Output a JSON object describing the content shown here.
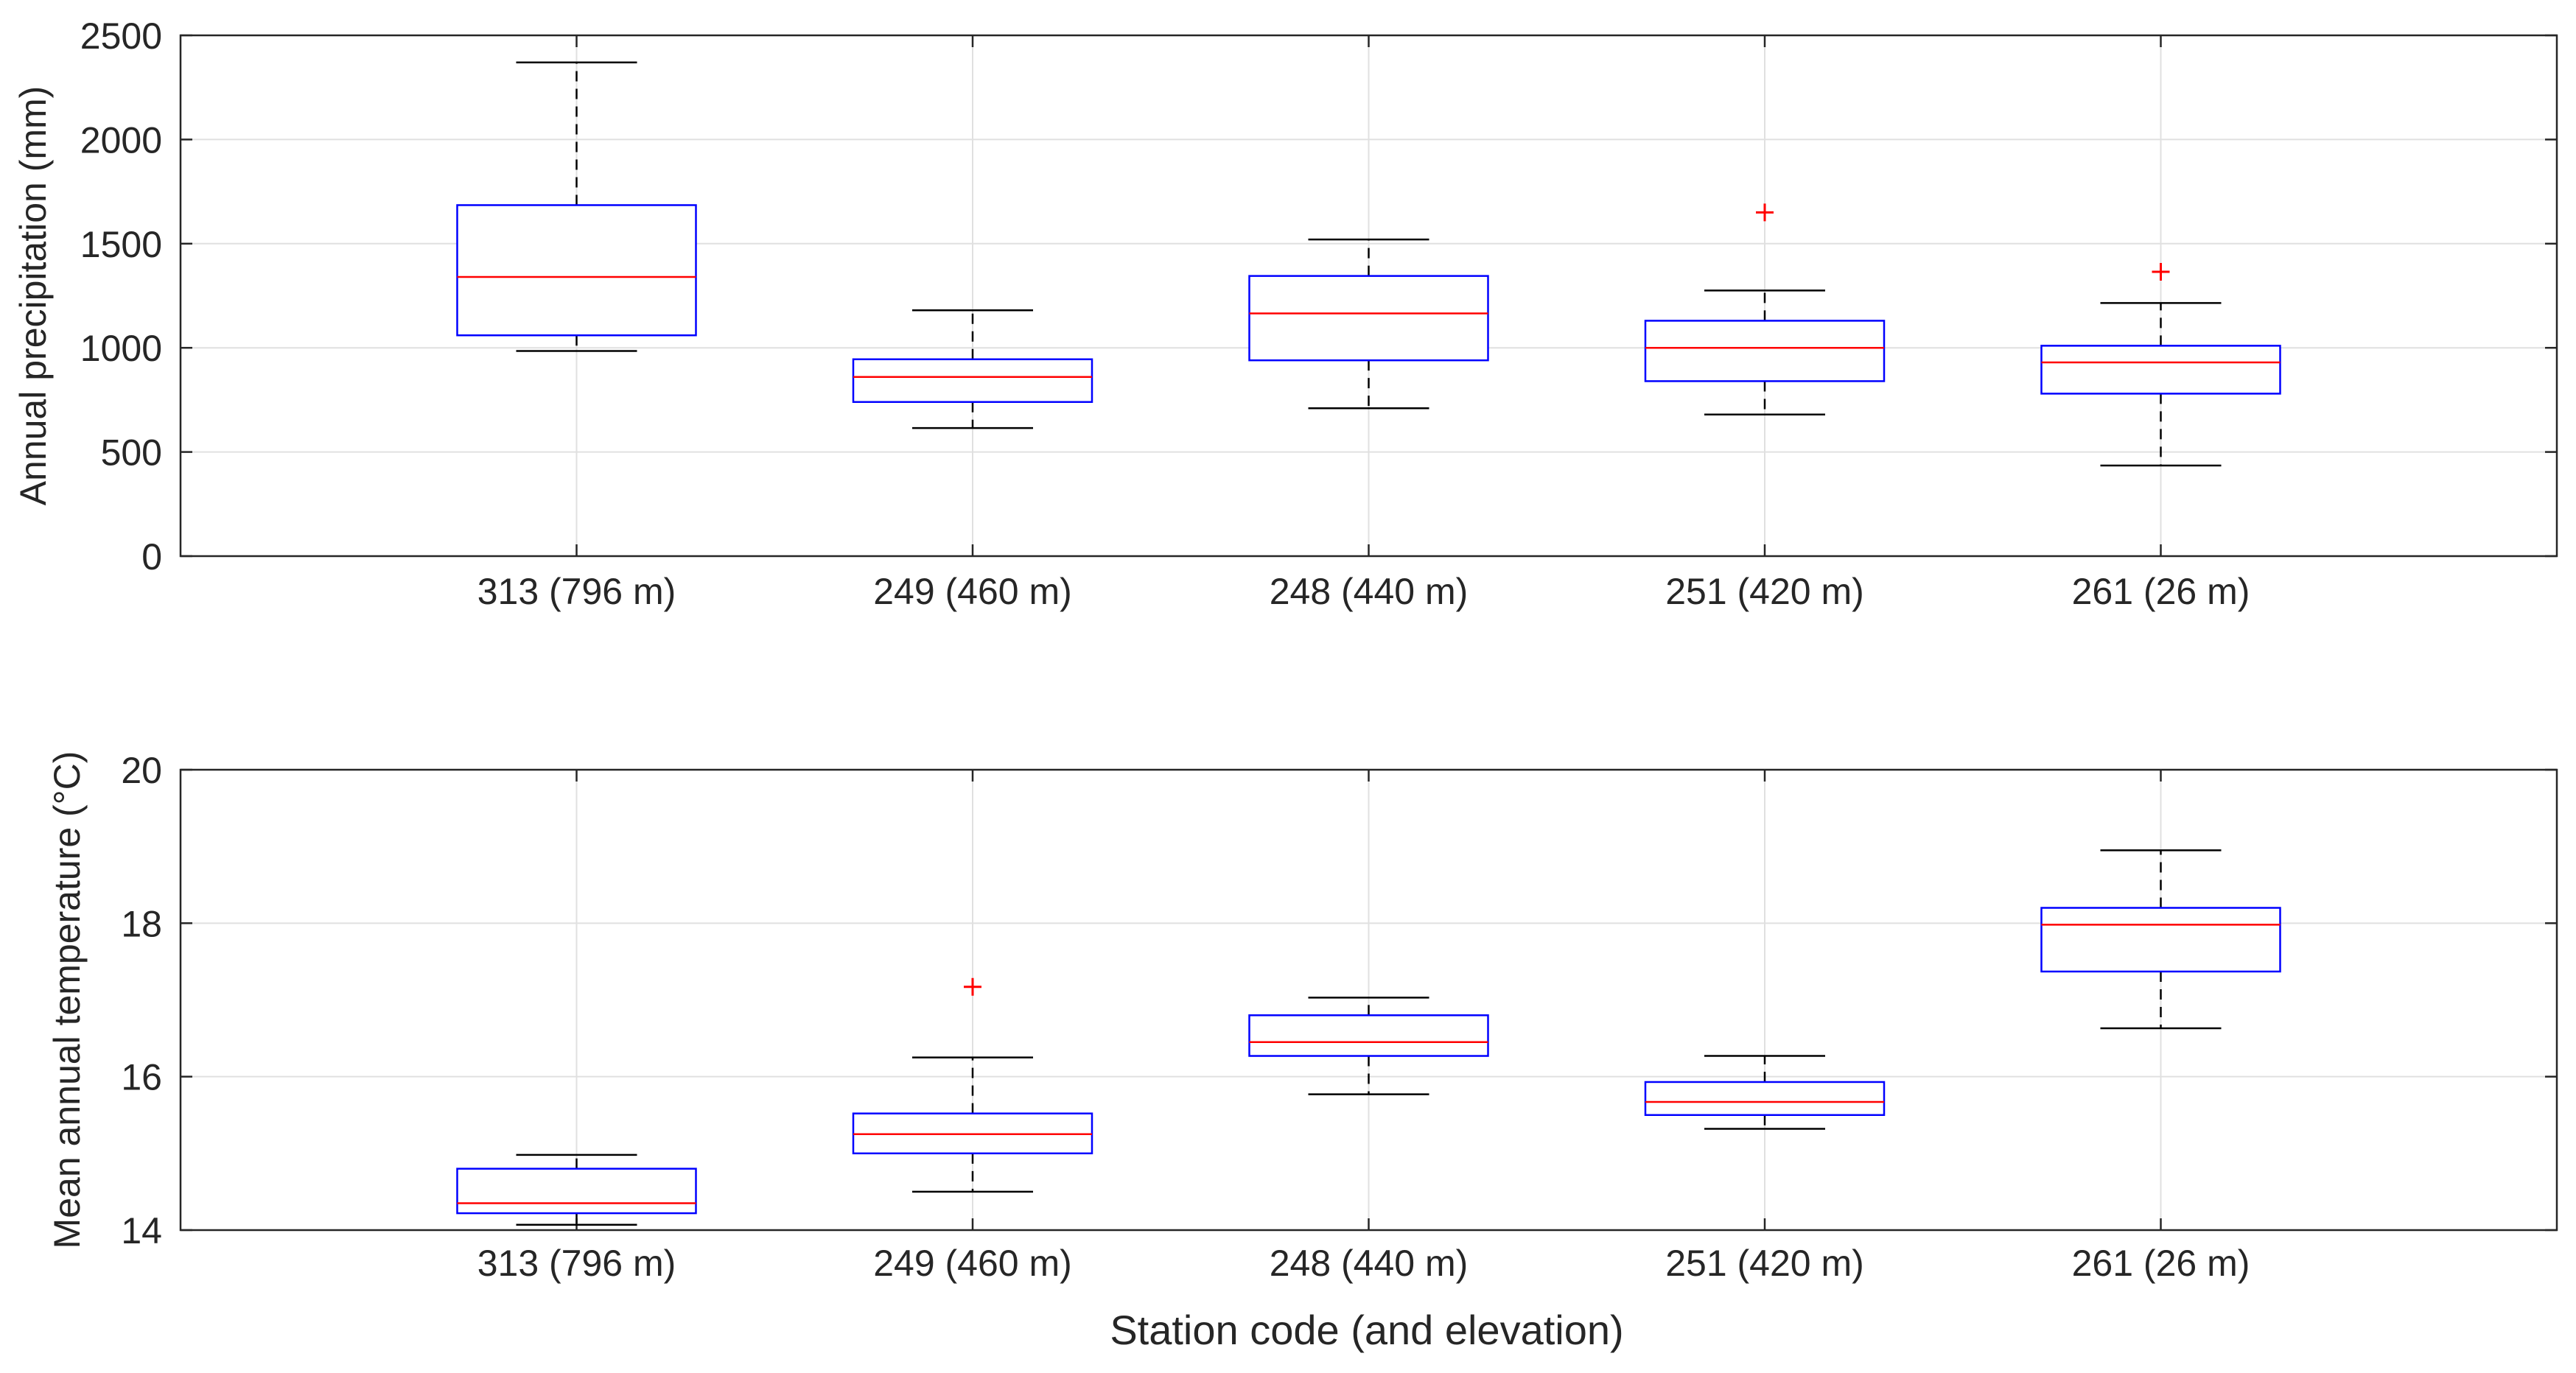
{
  "figure": {
    "xlabel": "Station code (and elevation)"
  },
  "chart_data": [
    {
      "type": "boxplot",
      "ylabel": "Annual precipitation (mm)",
      "xlabel": "",
      "ylim": [
        0,
        2500
      ],
      "yticks": [
        0,
        500,
        1000,
        1500,
        2000,
        2500
      ],
      "categories": [
        "313 (796 m)",
        "249 (460 m)",
        "248 (440 m)",
        "251 (420 m)",
        "261 (26 m)"
      ],
      "grid": true,
      "boxes": [
        {
          "whisker_low": 985,
          "q1": 1060,
          "median": 1340,
          "q3": 1685,
          "whisker_high": 2370,
          "outliers": []
        },
        {
          "whisker_low": 615,
          "q1": 740,
          "median": 860,
          "q3": 945,
          "whisker_high": 1180,
          "outliers": []
        },
        {
          "whisker_low": 710,
          "q1": 940,
          "median": 1165,
          "q3": 1345,
          "whisker_high": 1520,
          "outliers": []
        },
        {
          "whisker_low": 680,
          "q1": 840,
          "median": 1000,
          "q3": 1130,
          "whisker_high": 1275,
          "outliers": [
            1650
          ]
        },
        {
          "whisker_low": 435,
          "q1": 780,
          "median": 930,
          "q3": 1010,
          "whisker_high": 1215,
          "outliers": [
            1365
          ]
        }
      ],
      "colors": {
        "box": "#0000ff",
        "median": "#ff0000",
        "whisker": "#000000",
        "outlier": "#ff0000"
      }
    },
    {
      "type": "boxplot",
      "ylabel": "Mean annual temperature (°C)",
      "xlabel": "Station code (and elevation)",
      "ylim": [
        14,
        20
      ],
      "yticks": [
        14,
        16,
        18,
        20
      ],
      "categories": [
        "313 (796 m)",
        "249 (460 m)",
        "248 (440 m)",
        "251 (420 m)",
        "261 (26 m)"
      ],
      "grid": true,
      "boxes": [
        {
          "whisker_low": 14.07,
          "q1": 14.22,
          "median": 14.35,
          "q3": 14.8,
          "whisker_high": 14.98,
          "outliers": []
        },
        {
          "whisker_low": 14.5,
          "q1": 15.0,
          "median": 15.25,
          "q3": 15.52,
          "whisker_high": 16.25,
          "outliers": [
            17.17
          ]
        },
        {
          "whisker_low": 15.77,
          "q1": 16.27,
          "median": 16.45,
          "q3": 16.8,
          "whisker_high": 17.03,
          "outliers": []
        },
        {
          "whisker_low": 15.32,
          "q1": 15.5,
          "median": 15.67,
          "q3": 15.93,
          "whisker_high": 16.27,
          "outliers": []
        },
        {
          "whisker_low": 16.63,
          "q1": 17.37,
          "median": 17.98,
          "q3": 18.2,
          "whisker_high": 18.95,
          "outliers": []
        }
      ],
      "colors": {
        "box": "#0000ff",
        "median": "#ff0000",
        "whisker": "#000000",
        "outlier": "#ff0000"
      }
    }
  ]
}
